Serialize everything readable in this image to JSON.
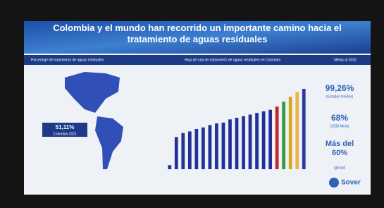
{
  "slide": {
    "title": "Colombia y el mundo han recorrido un importante camino hacia el tratamiento de aguas residuales",
    "headers": [
      "Porcentaje de tratamiento de aguas residuales",
      "Hoja de ruta de tratamiento de aguas residuales en Colombia",
      "Metas al 2030"
    ],
    "map_label": "51,11%",
    "map_sublabel": "Colombia 2021",
    "targets": [
      {
        "value": "99,26%",
        "note": "(Estados Unidos)"
      },
      {
        "value": "68%",
        "note": "(2030 Meta)"
      },
      {
        "value": "Más del 60%",
        "note": "(global)"
      }
    ],
    "logo": "Sover"
  },
  "chart_data": {
    "type": "bar",
    "values": [
      5,
      40,
      45,
      47,
      50,
      52,
      55,
      57,
      58,
      62,
      64,
      66,
      68,
      70,
      72,
      74,
      78,
      84,
      90,
      96,
      100
    ],
    "colors": [
      "#22319a",
      "#22319a",
      "#22319a",
      "#22319a",
      "#22319a",
      "#22319a",
      "#22319a",
      "#22319a",
      "#22319a",
      "#22319a",
      "#22319a",
      "#22319a",
      "#22319a",
      "#22319a",
      "#22319a",
      "#22319a",
      "#c0262c",
      "#3a9a3a",
      "#d9a520",
      "#e6b84a",
      "#2a3aa8"
    ],
    "ylim": [
      0,
      100
    ]
  }
}
